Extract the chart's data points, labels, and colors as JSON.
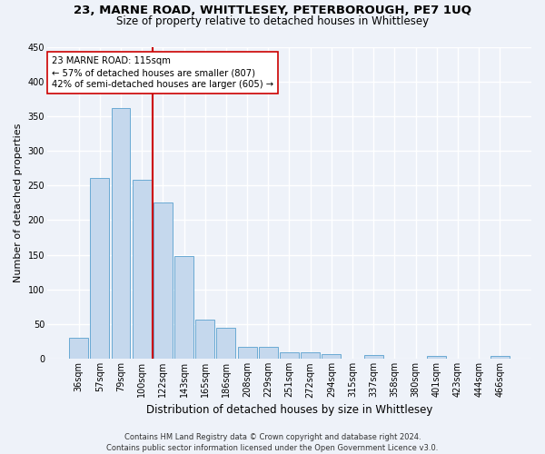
{
  "title": "23, MARNE ROAD, WHITTLESEY, PETERBOROUGH, PE7 1UQ",
  "subtitle": "Size of property relative to detached houses in Whittlesey",
  "xlabel": "Distribution of detached houses by size in Whittlesey",
  "ylabel": "Number of detached properties",
  "bar_color": "#c5d8ed",
  "bar_edge_color": "#6aaad4",
  "categories": [
    "36sqm",
    "57sqm",
    "79sqm",
    "100sqm",
    "122sqm",
    "143sqm",
    "165sqm",
    "186sqm",
    "208sqm",
    "229sqm",
    "251sqm",
    "272sqm",
    "294sqm",
    "315sqm",
    "337sqm",
    "358sqm",
    "380sqm",
    "401sqm",
    "423sqm",
    "444sqm",
    "466sqm"
  ],
  "values": [
    30,
    261,
    362,
    258,
    225,
    148,
    57,
    45,
    18,
    18,
    10,
    10,
    7,
    0,
    6,
    0,
    0,
    4,
    0,
    0,
    4
  ],
  "vline_index": 4,
  "vline_color": "#cc0000",
  "annotation_line1": "23 MARNE ROAD: 115sqm",
  "annotation_line2": "← 57% of detached houses are smaller (807)",
  "annotation_line3": "42% of semi-detached houses are larger (605) →",
  "annotation_box_color": "#ffffff",
  "annotation_box_edge": "#cc0000",
  "ylim": [
    0,
    450
  ],
  "yticks": [
    0,
    50,
    100,
    150,
    200,
    250,
    300,
    350,
    400,
    450
  ],
  "footer_line1": "Contains HM Land Registry data © Crown copyright and database right 2024.",
  "footer_line2": "Contains public sector information licensed under the Open Government Licence v3.0.",
  "bg_color": "#eef2f9",
  "grid_color": "#ffffff",
  "title_fontsize": 9.5,
  "subtitle_fontsize": 8.5,
  "ylabel_fontsize": 8,
  "xlabel_fontsize": 8.5,
  "tick_fontsize": 7,
  "footer_fontsize": 6.0
}
